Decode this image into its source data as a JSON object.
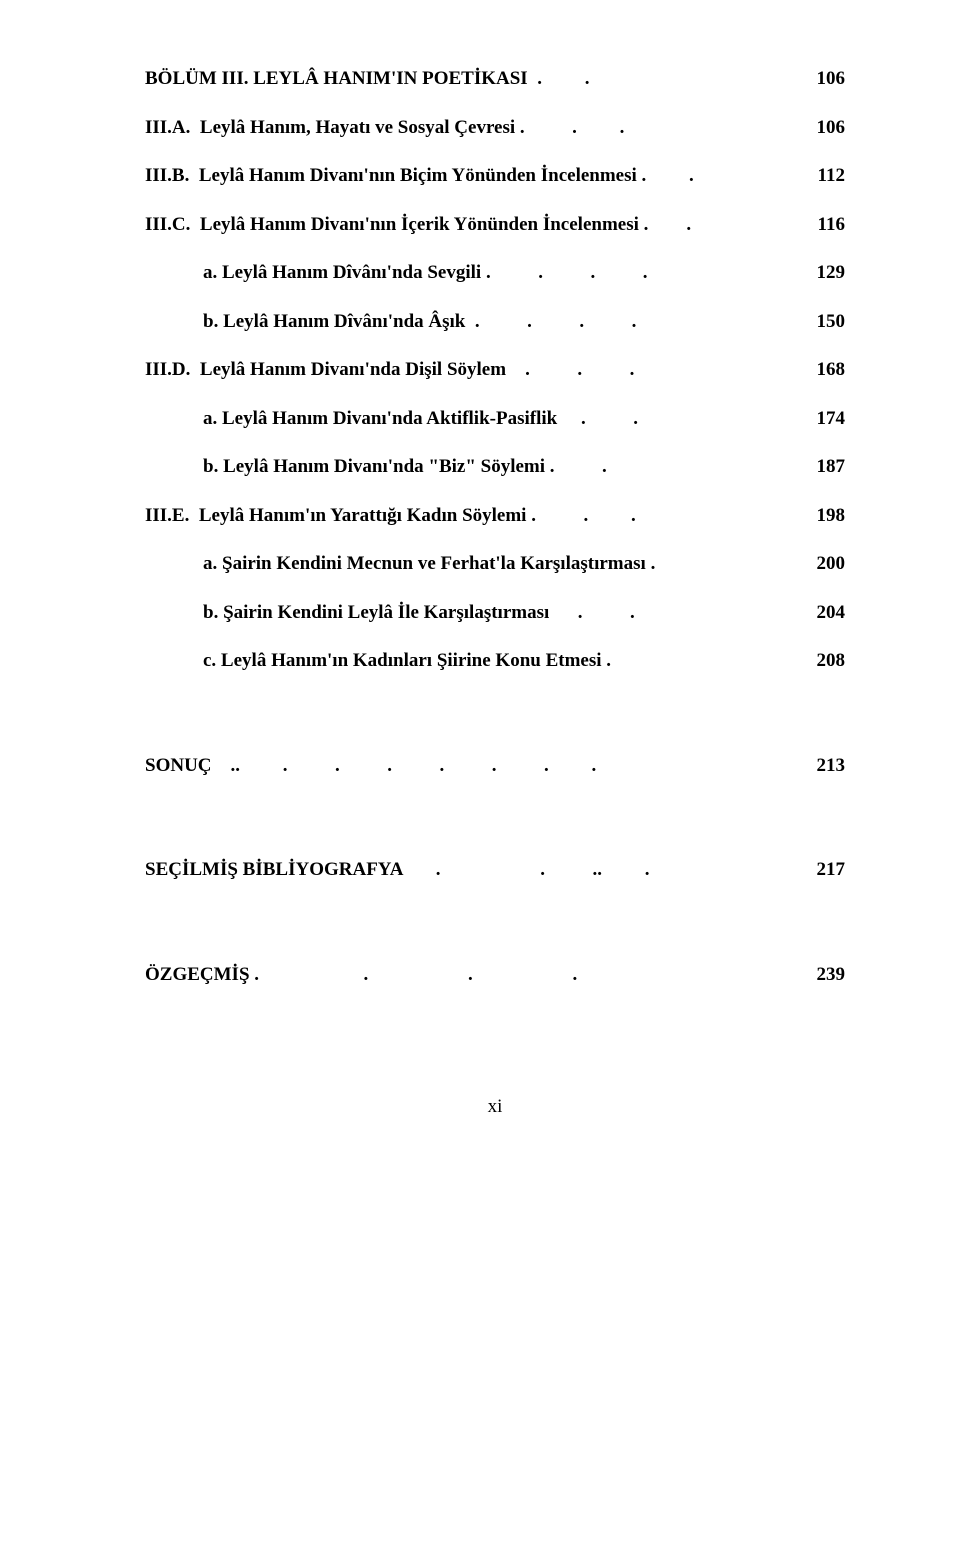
{
  "font": {
    "family": "Times New Roman",
    "size_pt": 14,
    "weight": "bold",
    "color": "#000000"
  },
  "background_color": "#ffffff",
  "page_footer": "xi",
  "entries": [
    {
      "indent": 0,
      "label": "BÖLÜM III. LEYLÂ HANIM'IN POETİKASI",
      "dots": "  .         .         ",
      "page": "106"
    },
    {
      "indent": 0,
      "label": "III.A.  Leylâ Hanım, Hayatı ve Sosyal Çevresi ",
      "dots": ".          .         .        ",
      "page": "106"
    },
    {
      "indent": 0,
      "label": "III.B.  Leylâ Hanım Divanı'nın Biçim Yönünden İncelenmesi",
      "dots": " .         .        ",
      "page": "112"
    },
    {
      "indent": 0,
      "label": "III.C.  Leylâ Hanım Divanı'nın İçerik Yönünden İncelenmesi",
      "dots": " .        .        ",
      "page": "116"
    },
    {
      "indent": 1,
      "label": "a. Leylâ Hanım Dîvânı'nda Sevgili ",
      "dots": ".          .          .          .         ",
      "page": "129"
    },
    {
      "indent": 1,
      "label": "b. Leylâ Hanım Dîvânı'nda Âşık  ",
      "dots": ".          .          .          .         ",
      "page": "150"
    },
    {
      "indent": 0,
      "label": "III.D.  Leylâ Hanım Divanı'nda Dişil Söylem    ",
      "dots": ".          .          .        ",
      "page": "168"
    },
    {
      "indent": 1,
      "label": "a. Leylâ Hanım Divanı'nda Aktiflik-Pasiflik     ",
      "dots": ".          .         ",
      "page": "174"
    },
    {
      "indent": 1,
      "label": "b. Leylâ Hanım Divanı'nda \"Biz\" Söylemi ",
      "dots": ".          .         ",
      "page": "187"
    },
    {
      "indent": 0,
      "label": "III.E.  Leylâ Hanım'ın Yarattığı Kadın Söylemi",
      "dots": " .          .         .        ",
      "page": "198"
    },
    {
      "indent": 1,
      "label": "a. Şairin Kendini Mecnun ve Ferhat'la Karşılaştırması ",
      "dots": ".         ",
      "page": "200"
    },
    {
      "indent": 1,
      "label": "b. Şairin Kendini Leylâ İle Karşılaştırması      ",
      "dots": ".          .         ",
      "page": "204"
    },
    {
      "indent": 1,
      "label": "c. Leylâ Hanım'ın Kadınları Şiirine Konu Etmesi ",
      "dots": ".         ",
      "page": "208"
    },
    {
      "gap": true
    },
    {
      "indent": 0,
      "label": "SONUÇ    ",
      "dots": "..         .          .          .          .          .          .         .        ",
      "page": "213"
    },
    {
      "gap": true
    },
    {
      "indent": 0,
      "label": "SEÇİLMİŞ BİBLİYOGRAFYA       ",
      "dots": ".                     .          ..         .        ",
      "page": "217"
    },
    {
      "gap": true
    },
    {
      "indent": 0,
      "label": "ÖZGEÇMİŞ ",
      "dots": ".                      .                     .                     .        ",
      "page": "239"
    }
  ]
}
